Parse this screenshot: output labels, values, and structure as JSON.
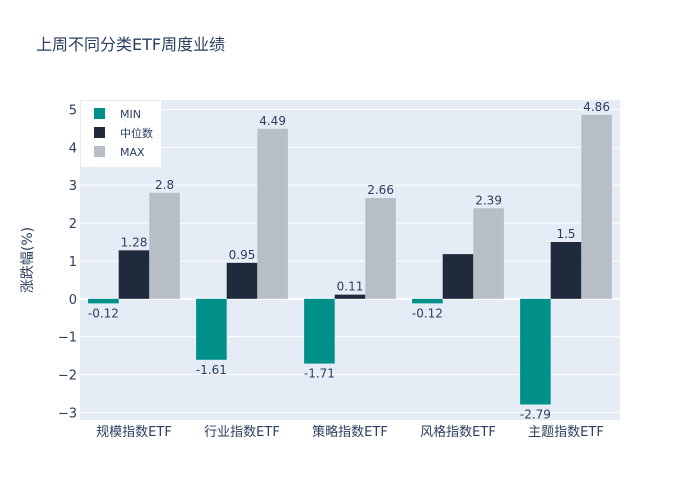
{
  "chart_data": {
    "type": "bar",
    "title": "上周不同分类ETF周度业绩",
    "xlabel": "",
    "ylabel": "涨跌幅(%)",
    "ylim": [
      -3.2,
      5.25
    ],
    "yticks": [
      -3,
      -2,
      -1,
      0,
      1,
      2,
      3,
      4,
      5
    ],
    "ytick_labels": [
      "−3",
      "−2",
      "−1",
      "0",
      "1",
      "2",
      "3",
      "4",
      "5"
    ],
    "categories": [
      "规模指数ETF",
      "行业指数ETF",
      "策略指数ETF",
      "风格指数ETF",
      "主题指数ETF"
    ],
    "series": [
      {
        "name": "MIN",
        "color": "#00908a",
        "values": [
          -0.12,
          -1.61,
          -1.71,
          -0.12,
          -2.79
        ],
        "labels": [
          "-0.12",
          "-1.61",
          "-1.71",
          "-0.12",
          "-2.79"
        ]
      },
      {
        "name": "中位数",
        "color": "#1f2a3d",
        "values": [
          1.28,
          0.95,
          0.11,
          1.18,
          1.5
        ],
        "labels": [
          "1.28",
          "0.95",
          "0.11",
          "",
          "1.5"
        ]
      },
      {
        "name": "MAX",
        "color": "#b8bec6",
        "values": [
          2.8,
          4.49,
          2.66,
          2.39,
          4.86
        ],
        "labels": [
          "2.8",
          "4.49",
          "2.66",
          "2.39",
          "4.86"
        ]
      }
    ],
    "legend_position": "top-left",
    "grid": true,
    "colors": {
      "plot_bg": "#e5ecf6",
      "grid": "#ffffff",
      "text": "#2a3f5f"
    }
  }
}
